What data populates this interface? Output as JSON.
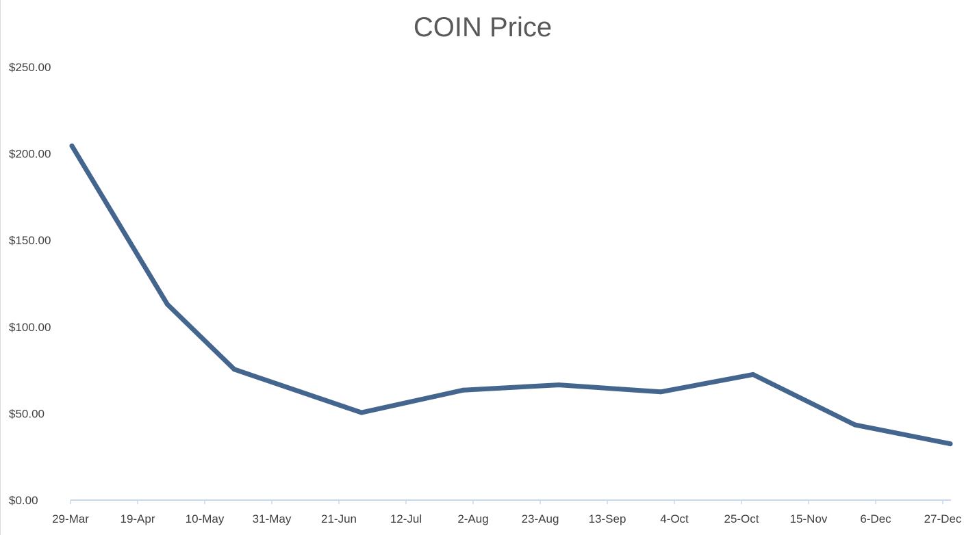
{
  "chart_data": {
    "type": "line",
    "title": "COIN Price",
    "xlabel": "",
    "ylabel": "",
    "x_tick_labels": [
      "29-Mar",
      "19-Apr",
      "10-May",
      "31-May",
      "21-Jun",
      "12-Jul",
      "2-Aug",
      "23-Aug",
      "13-Sep",
      "4-Oct",
      "25-Oct",
      "15-Nov",
      "6-Dec",
      "27-Dec"
    ],
    "y_tick_labels": [
      "$0.00",
      "$50.00",
      "$100.00",
      "$150.00",
      "$200.00",
      "$250.00"
    ],
    "ylim": [
      0,
      250
    ],
    "x_range": [
      "29-Mar",
      "30-Dec"
    ],
    "grid": false,
    "legend": "none",
    "series": [
      {
        "color": "#44668e",
        "x": [
          "29-Mar",
          "28-Apr",
          "19-May",
          "28-Jun",
          "30-Jul",
          "29-Aug",
          "30-Sep",
          "29-Oct",
          "30-Nov",
          "30-Dec"
        ],
        "y": [
          204.5,
          113.0,
          75.5,
          50.5,
          63.5,
          66.5,
          62.5,
          72.5,
          43.5,
          32.5
        ]
      }
    ]
  }
}
